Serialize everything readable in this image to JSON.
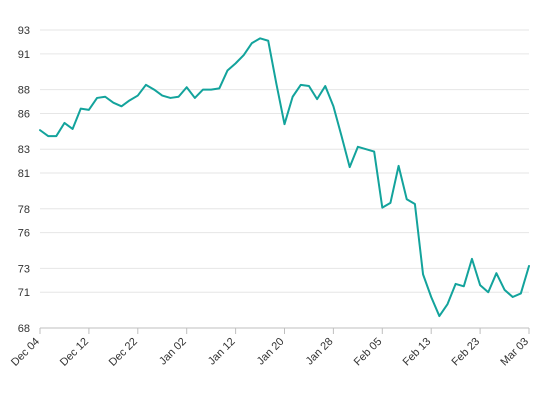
{
  "chart_data": {
    "type": "line",
    "title": "",
    "xlabel": "",
    "ylabel": "",
    "ylim": [
      68,
      93
    ],
    "yticks": [
      68,
      71,
      73,
      76,
      78,
      81,
      83,
      86,
      88,
      91,
      93
    ],
    "xticks": [
      "Dec 04",
      "Dec 12",
      "Dec 22",
      "Jan 02",
      "Jan 12",
      "Jan 20",
      "Jan 28",
      "Feb 05",
      "Feb 13",
      "Feb 23",
      "Mar 03"
    ],
    "grid": "horizontal",
    "legend": "none",
    "line_color": "#13a39c",
    "series": [
      {
        "values": [
          84.6,
          84.1,
          84.1,
          85.2,
          84.7,
          86.4,
          86.3,
          87.3,
          87.4,
          86.9,
          86.6,
          87.1,
          87.5,
          88.4,
          88.0,
          87.5,
          87.3,
          87.4,
          88.2,
          87.3,
          88.0,
          88.0,
          88.1,
          89.6,
          90.2,
          90.9,
          91.9,
          92.3,
          92.1,
          88.5,
          85.1,
          87.4,
          88.4,
          88.3,
          87.2,
          88.3,
          86.6,
          84.1,
          81.5,
          83.2,
          83.0,
          82.8,
          78.1,
          78.5,
          81.6,
          78.8,
          78.4,
          72.5,
          70.6,
          69.0,
          70.0,
          71.7,
          71.5,
          73.8,
          71.6,
          71.0,
          72.6,
          71.2,
          70.6,
          70.9,
          73.2
        ]
      }
    ]
  }
}
